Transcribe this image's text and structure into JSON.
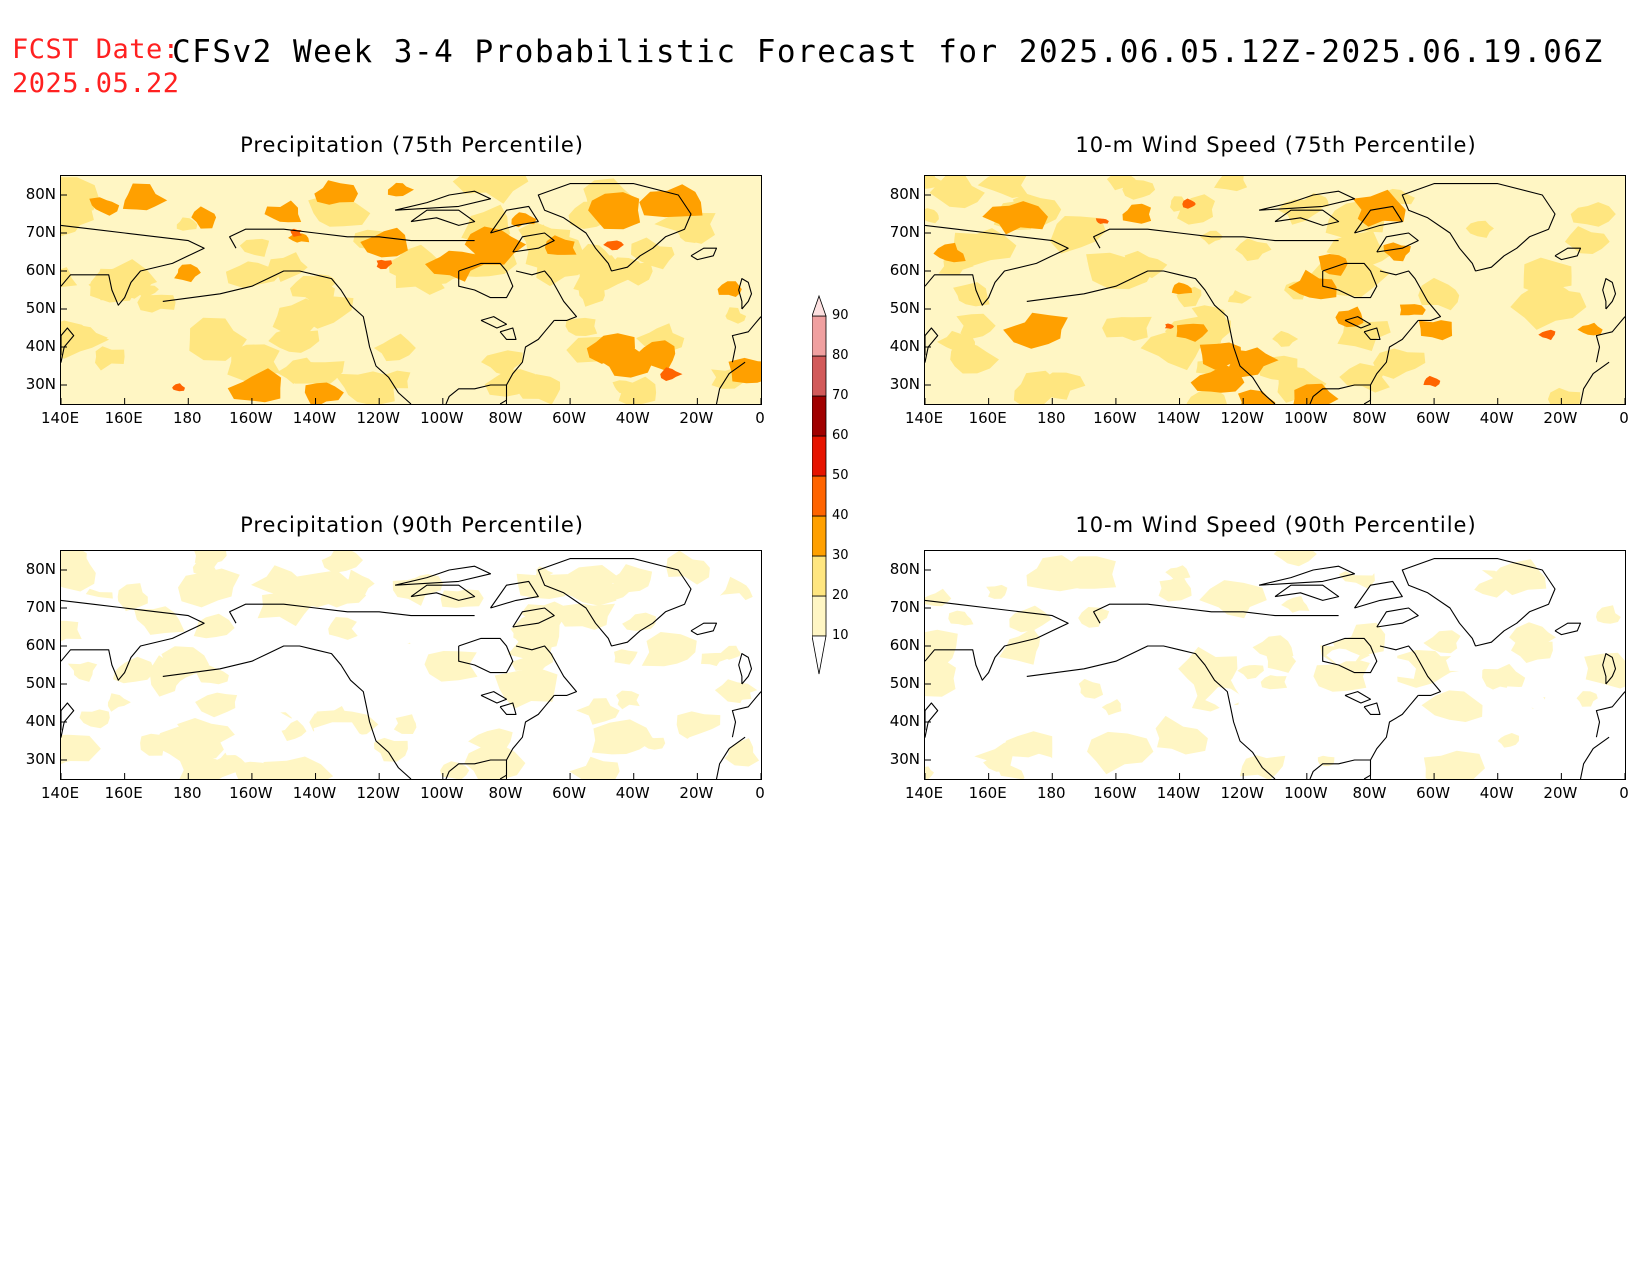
{
  "header": {
    "fcst_label": "FCST Date:",
    "fcst_date": "2025.05.22",
    "title": "CFSv2 Week 3-4 Probabilistic Forecast for 2025.06.05.12Z-2025.06.19.06Z"
  },
  "axes": {
    "lat_labels": [
      "80N",
      "70N",
      "60N",
      "50N",
      "40N",
      "30N"
    ],
    "lon_labels": [
      "140E",
      "160E",
      "180",
      "160W",
      "140W",
      "120W",
      "100W",
      "80W",
      "60W",
      "40W",
      "20W",
      "0"
    ]
  },
  "panels": [
    {
      "id": "precip75",
      "title": "Precipitation (75th Percentile)",
      "base_level": 20
    },
    {
      "id": "wind75",
      "title": "10-m Wind Speed (75th Percentile)",
      "base_level": 20
    },
    {
      "id": "precip90",
      "title": "Precipitation (90th Percentile)",
      "base_level": 0
    },
    {
      "id": "wind90",
      "title": "10-m Wind Speed (90th Percentile)",
      "base_level": 0
    }
  ],
  "colorbar": {
    "levels": [
      "10",
      "20",
      "30",
      "40",
      "50",
      "60",
      "70",
      "80",
      "90"
    ],
    "colors": [
      "#ffffff",
      "#fff6c4",
      "#ffe680",
      "#ffa000",
      "#ff6400",
      "#e61400",
      "#a00000",
      "#d25a5a",
      "#f0a0a0",
      "#fde0e0"
    ]
  }
}
